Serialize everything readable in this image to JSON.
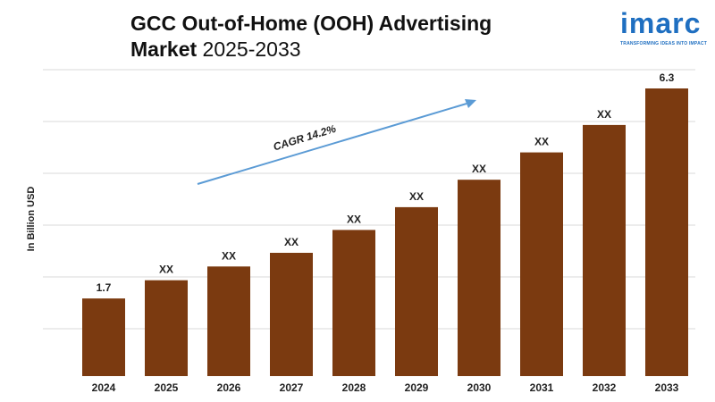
{
  "header": {
    "title_main": "GCC Out-of-Home (OOH) Advertising",
    "title_line2": "Market",
    "title_years": "2025-2033"
  },
  "logo": {
    "word": "imarc",
    "tagline": "TRANSFORMING IDEAS INTO IMPACT",
    "color": "#1f6fc1"
  },
  "chart_data": {
    "type": "bar",
    "categories": [
      "2024",
      "2025",
      "2026",
      "2027",
      "2028",
      "2029",
      "2030",
      "2031",
      "2032",
      "2033"
    ],
    "values": [
      1.7,
      2.1,
      2.4,
      2.7,
      3.2,
      3.7,
      4.3,
      4.9,
      5.5,
      6.3
    ],
    "data_labels": [
      "1.7",
      "XX",
      "XX",
      "XX",
      "XX",
      "XX",
      "XX",
      "XX",
      "XX",
      "6.3"
    ],
    "ylabel": "In Billion USD",
    "ylim": [
      0,
      6.3
    ],
    "grid": true,
    "bar_color": "#7b3a10",
    "annotation": {
      "text": "CAGR 14.2%",
      "arrow_color": "#5b9bd5"
    }
  }
}
